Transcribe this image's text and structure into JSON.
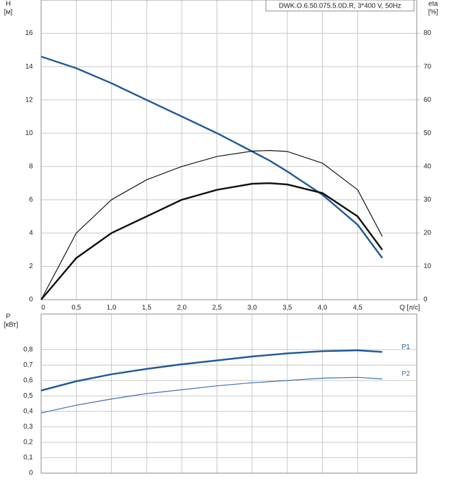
{
  "chart_data": [
    {
      "type": "line",
      "annotation": "DWK.O.6.50.075.5.0D.R, 3*400 V, 50Hz",
      "ylabel": "H",
      "yunit": "[м]",
      "y2label": "eta",
      "y2unit": "[%]",
      "xlabel": "Q [л/с]",
      "x": [
        0,
        0.5,
        1.0,
        1.5,
        2.0,
        2.5,
        3.0,
        3.25,
        3.5,
        4.0,
        4.5,
        4.85
      ],
      "xlim": [
        0,
        5.34
      ],
      "xticks": [
        0,
        {
          "value": 0.5,
          "label": "0,5"
        },
        {
          "value": 1.0,
          "label": "1,0"
        },
        {
          "value": 1.5,
          "label": "1,5"
        },
        {
          "value": 2.0,
          "label": "2,0"
        },
        {
          "value": 2.5,
          "label": "2,5"
        },
        {
          "value": 3.0,
          "label": "3,0"
        },
        {
          "value": 3.5,
          "label": "3,5"
        },
        {
          "value": 4.0,
          "label": "4,0"
        },
        {
          "value": 4.5,
          "label": "4,5"
        }
      ],
      "ylim": [
        0,
        18
      ],
      "yticks": [
        0,
        2,
        4,
        6,
        8,
        10,
        12,
        14,
        16
      ],
      "y2lim": [
        0,
        90
      ],
      "y2ticks": [
        0,
        10,
        20,
        30,
        40,
        50,
        60,
        70,
        80
      ],
      "grid": true,
      "series": [
        {
          "color": "#1f5a96",
          "width": 2.5,
          "values": [
            14.6,
            13.9,
            13.0,
            12.0,
            11.0,
            10.0,
            8.9,
            8.35,
            7.7,
            6.3,
            4.5,
            2.5
          ]
        },
        {
          "color": "#111111",
          "width": 1.2,
          "axis": "y2",
          "values": [
            0,
            20,
            30,
            36,
            40,
            43,
            44.6,
            44.8,
            44.5,
            41,
            33,
            19
          ]
        },
        {
          "color": "#111111",
          "width": 2.5,
          "axis": "y2",
          "values": [
            0,
            12.5,
            20,
            25,
            30,
            33,
            34.8,
            35,
            34.6,
            32,
            25,
            15
          ]
        }
      ]
    },
    {
      "type": "line",
      "ylabel": "P",
      "yunit": "[кВт]",
      "x": [
        0,
        0.5,
        1.0,
        1.5,
        2.0,
        2.5,
        3.0,
        3.5,
        4.0,
        4.5,
        4.85
      ],
      "xlim": [
        0,
        5.34
      ],
      "ylim": [
        0,
        1.03
      ],
      "yticks": [
        0,
        {
          "value": 0.1,
          "label": "0,1"
        },
        {
          "value": 0.2,
          "label": "0,2"
        },
        {
          "value": 0.3,
          "label": "0,3"
        },
        {
          "value": 0.4,
          "label": "0,4"
        },
        {
          "value": 0.5,
          "label": "0,5"
        },
        {
          "value": 0.6,
          "label": "0,6"
        },
        {
          "value": 0.7,
          "label": "0,7"
        },
        {
          "value": 0.8,
          "label": "0,8"
        }
      ],
      "grid": true,
      "series": [
        {
          "name": "P1",
          "color": "#1f5a96",
          "width": 2.5,
          "values": [
            0.535,
            0.595,
            0.64,
            0.675,
            0.705,
            0.73,
            0.755,
            0.775,
            0.79,
            0.795,
            0.785
          ]
        },
        {
          "name": "P2",
          "color": "#3a6fb0",
          "width": 1.2,
          "values": [
            0.39,
            0.44,
            0.48,
            0.515,
            0.54,
            0.565,
            0.585,
            0.6,
            0.615,
            0.62,
            0.61
          ]
        }
      ]
    }
  ]
}
